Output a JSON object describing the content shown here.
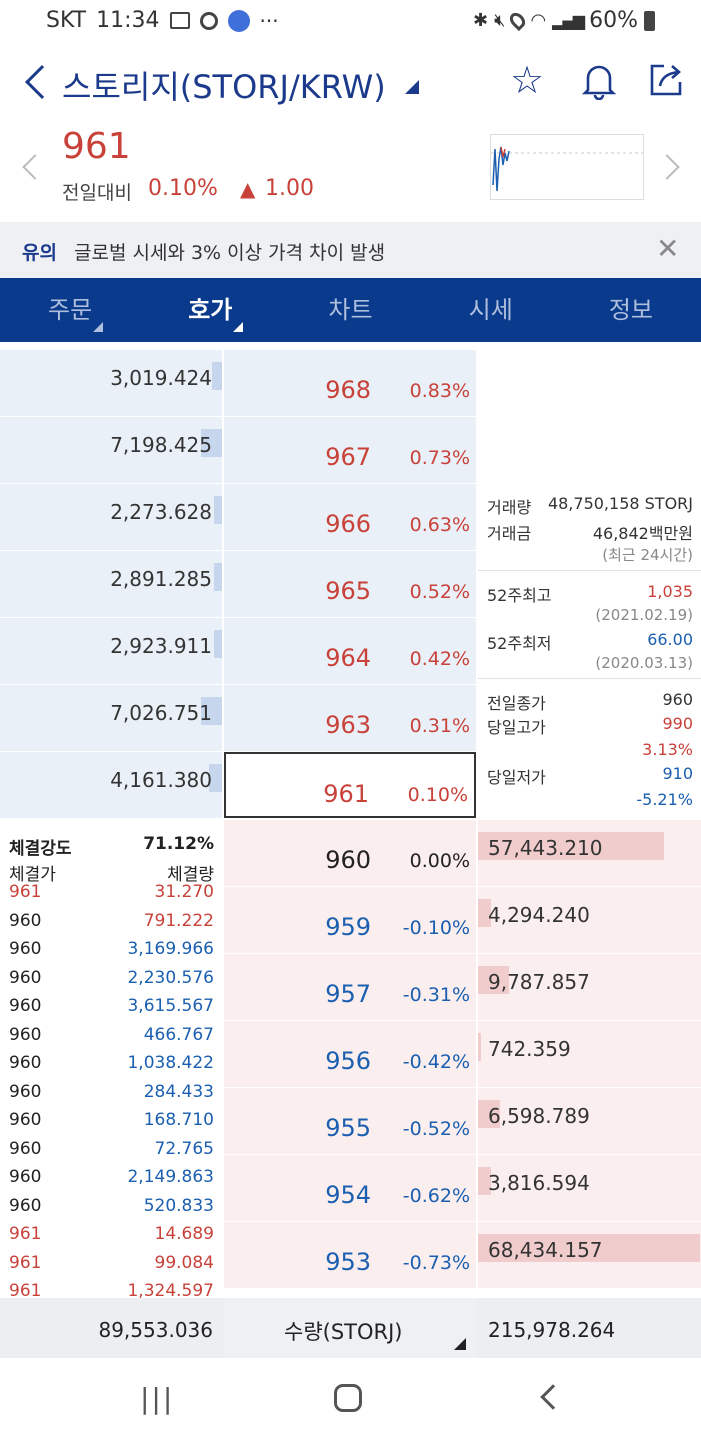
{
  "status_bar": {
    "carrier": "SKT",
    "time": "11:34",
    "battery": "60%",
    "icons": [
      "gallery-icon",
      "camera-icon",
      "app-icon",
      "more-icon",
      "bluetooth-icon",
      "mute-icon",
      "location-icon",
      "wifi-icon",
      "signal-icon",
      "battery-icon"
    ]
  },
  "header": {
    "title": "스토리지(STORJ/KRW)",
    "icons": [
      "back-icon",
      "star-icon",
      "bell-icon",
      "share-icon"
    ]
  },
  "price": {
    "current": "961",
    "change_label": "전일대비",
    "change_pct": "0.10%",
    "change_arrow": "▲",
    "change_abs": "1.00"
  },
  "notice": {
    "tag": "유의",
    "text": "글로벌 시세와 3% 이상 가격 차이 발생"
  },
  "tabs": [
    {
      "label": "주문",
      "dropdown": true
    },
    {
      "label": "호가",
      "dropdown": true,
      "active": true
    },
    {
      "label": "차트"
    },
    {
      "label": "시세"
    },
    {
      "label": "정보"
    }
  ],
  "asks": [
    {
      "qty": "3,019.424",
      "price": "968",
      "pct": "0.83%",
      "level": 0.05
    },
    {
      "qty": "7,198.425",
      "price": "967",
      "pct": "0.73%",
      "level": 0.1
    },
    {
      "qty": "2,273.628",
      "price": "966",
      "pct": "0.63%",
      "level": 0.04
    },
    {
      "qty": "2,891.285",
      "price": "965",
      "pct": "0.52%",
      "level": 0.04
    },
    {
      "qty": "2,923.911",
      "price": "964",
      "pct": "0.42%",
      "level": 0.04
    },
    {
      "qty": "7,026.751",
      "price": "963",
      "pct": "0.31%",
      "level": 0.1
    },
    {
      "qty": "4,161.380",
      "price": "961",
      "pct": "0.10%",
      "level": 0.06,
      "selected": true
    }
  ],
  "bids": [
    {
      "qty": "57,443.210",
      "price": "960",
      "pct": "0.00%",
      "level": 0.84
    },
    {
      "qty": "4,294.240",
      "price": "959",
      "pct": "-0.10%",
      "level": 0.06
    },
    {
      "qty": "9,787.857",
      "price": "957",
      "pct": "-0.31%",
      "level": 0.14
    },
    {
      "qty": "742.359",
      "price": "956",
      "pct": "-0.42%",
      "level": 0.01
    },
    {
      "qty": "6,598.789",
      "price": "955",
      "pct": "-0.52%",
      "level": 0.1
    },
    {
      "qty": "3,816.594",
      "price": "954",
      "pct": "-0.62%",
      "level": 0.06
    },
    {
      "qty": "68,434.157",
      "price": "953",
      "pct": "-0.73%",
      "level": 1.0
    }
  ],
  "summary": {
    "volume_label": "거래량",
    "volume": "48,750,158 STORJ",
    "amount_label": "거래금",
    "amount": "46,842백만원",
    "period": "(최근 24시간)",
    "high52_label": "52주최고",
    "high52": "1,035",
    "high52_date": "(2021.02.19)",
    "low52_label": "52주최저",
    "low52": "66.00",
    "low52_date": "(2020.03.13)",
    "prev_close_label": "전일종가",
    "prev_close": "960",
    "day_high_label": "당일고가",
    "day_high": "990",
    "day_high_pct": "3.13%",
    "day_low_label": "당일저가",
    "day_low": "910",
    "day_low_pct": "-5.21%"
  },
  "trades": {
    "strength_label": "체결강도",
    "strength": "71.12%",
    "price_header": "체결가",
    "qty_header": "체결량",
    "rows": [
      {
        "price": "961",
        "qty": "31.270",
        "side": "buy"
      },
      {
        "price": "960",
        "qty": "791.222",
        "side": "buy"
      },
      {
        "price": "960",
        "qty": "3,169.966",
        "side": "sell"
      },
      {
        "price": "960",
        "qty": "2,230.576",
        "side": "sell"
      },
      {
        "price": "960",
        "qty": "3,615.567",
        "side": "sell"
      },
      {
        "price": "960",
        "qty": "466.767",
        "side": "sell"
      },
      {
        "price": "960",
        "qty": "1,038.422",
        "side": "sell"
      },
      {
        "price": "960",
        "qty": "284.433",
        "side": "sell"
      },
      {
        "price": "960",
        "qty": "168.710",
        "side": "sell"
      },
      {
        "price": "960",
        "qty": "72.765",
        "side": "sell"
      },
      {
        "price": "960",
        "qty": "2,149.863",
        "side": "sell"
      },
      {
        "price": "960",
        "qty": "520.833",
        "side": "sell"
      },
      {
        "price": "961",
        "qty": "14.689",
        "side": "buy"
      },
      {
        "price": "961",
        "qty": "99.084",
        "side": "buy"
      },
      {
        "price": "961",
        "qty": "1,324.597",
        "side": "buy"
      }
    ]
  },
  "footer": {
    "ask_total": "89,553.036",
    "unit_label": "수량(STORJ)",
    "bid_total": "215,978.264"
  },
  "colors": {
    "up": "#c8423a",
    "down": "#1b5fb0",
    "header_blue": "#0a3a8c"
  }
}
